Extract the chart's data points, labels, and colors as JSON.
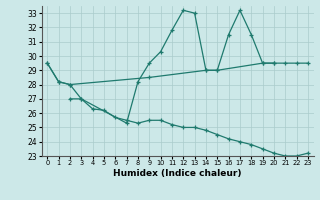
{
  "xlabel": "Humidex (Indice chaleur)",
  "xlim": [
    -0.5,
    23.5
  ],
  "ylim": [
    23,
    33.5
  ],
  "yticks": [
    23,
    24,
    25,
    26,
    27,
    28,
    29,
    30,
    31,
    32,
    33
  ],
  "xticks": [
    0,
    1,
    2,
    3,
    4,
    5,
    6,
    7,
    8,
    9,
    10,
    11,
    12,
    13,
    14,
    15,
    16,
    17,
    18,
    19,
    20,
    21,
    22,
    23
  ],
  "background_color": "#cce8e8",
  "grid_color": "#aacccc",
  "line_color": "#1f7a6e",
  "series": [
    {
      "x": [
        0,
        1,
        2,
        3,
        7,
        8,
        9,
        10,
        11,
        12,
        13,
        14,
        15,
        16,
        17,
        18,
        19,
        20
      ],
      "y": [
        29.5,
        28.2,
        28.0,
        27.0,
        25.3,
        28.2,
        29.5,
        30.3,
        31.8,
        33.2,
        33.0,
        29.0,
        29.0,
        31.5,
        33.2,
        31.5,
        29.5,
        29.5
      ]
    },
    {
      "x": [
        0,
        1,
        2,
        9,
        14,
        15,
        19,
        20,
        21,
        22,
        23
      ],
      "y": [
        29.5,
        28.2,
        28.0,
        28.5,
        29.0,
        29.0,
        29.5,
        29.5,
        29.5,
        29.5,
        29.5
      ]
    },
    {
      "x": [
        2,
        3,
        4,
        5,
        6,
        7,
        8,
        9,
        10,
        11,
        12,
        13,
        14,
        15,
        16,
        17,
        18,
        19,
        20,
        21,
        22,
        23
      ],
      "y": [
        27.0,
        27.0,
        26.3,
        26.2,
        25.7,
        25.5,
        25.3,
        25.5,
        25.5,
        25.2,
        25.0,
        25.0,
        24.8,
        24.5,
        24.2,
        24.0,
        23.8,
        23.5,
        23.2,
        23.0,
        23.0,
        23.2
      ]
    }
  ]
}
